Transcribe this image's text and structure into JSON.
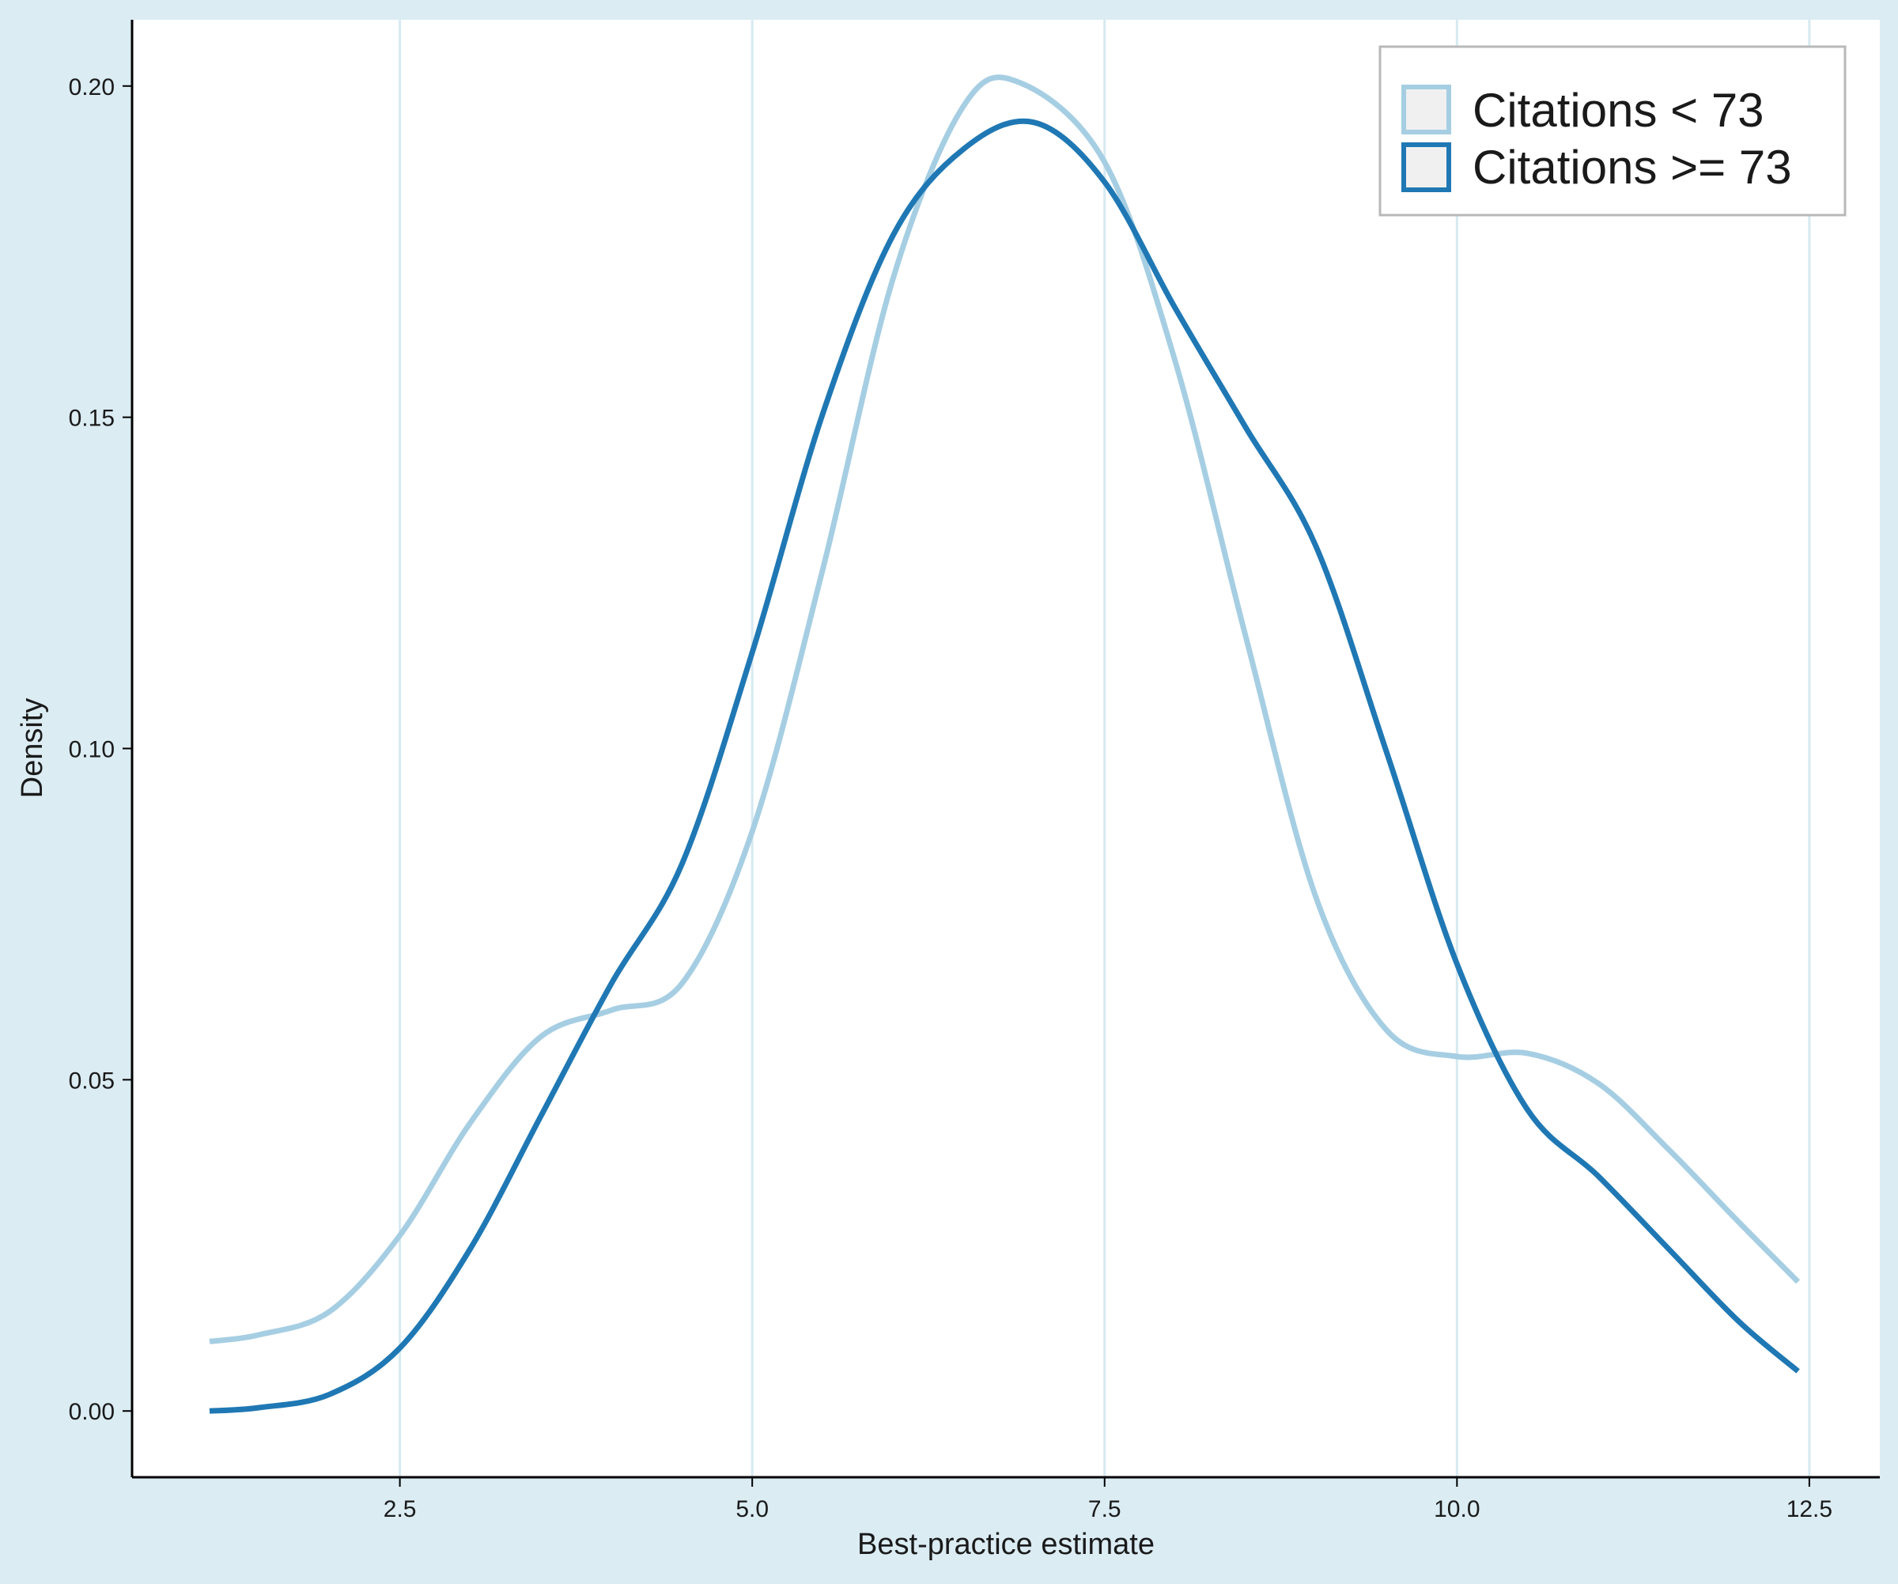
{
  "chart_data": {
    "type": "line",
    "title": "",
    "xlabel": "Best-practice estimate",
    "ylabel": "Density",
    "xlim": [
      0.6,
      13.0
    ],
    "ylim": [
      -0.01,
      0.21
    ],
    "x_ticks": [
      2.5,
      5.0,
      7.5,
      10.0,
      12.5
    ],
    "x_tick_labels": [
      "2.5",
      "5.0",
      "7.5",
      "10.0",
      "12.5"
    ],
    "y_ticks": [
      0.0,
      0.05,
      0.1,
      0.15,
      0.2
    ],
    "y_tick_labels": [
      "0.00",
      "0.05",
      "0.10",
      "0.15",
      "0.20"
    ],
    "grid": "vertical major gridlines only",
    "legend_position": "top-right",
    "colors": {
      "background": "#dbecf3",
      "panel": "#ffffff",
      "grid": "#d6e9f1",
      "series_light": "#a6cee3",
      "series_dark": "#1f78b4",
      "legend_key_fill": "#f0f0f0"
    },
    "series": [
      {
        "name": "Citations < 73",
        "color": "#a6cee3",
        "x": [
          1.15,
          1.5,
          2.0,
          2.5,
          3.0,
          3.5,
          4.0,
          4.5,
          5.0,
          5.5,
          6.0,
          6.5,
          6.9,
          7.5,
          8.0,
          8.5,
          9.0,
          9.5,
          10.0,
          10.5,
          11.0,
          11.5,
          12.0,
          12.42
        ],
        "y": [
          0.0105,
          0.0115,
          0.015,
          0.0265,
          0.0435,
          0.0565,
          0.0605,
          0.0645,
          0.0875,
          0.127,
          0.171,
          0.197,
          0.2005,
          0.1885,
          0.1585,
          0.117,
          0.0775,
          0.0575,
          0.0535,
          0.054,
          0.0495,
          0.0395,
          0.0285,
          0.0195
        ]
      },
      {
        "name": "Citations >= 73",
        "color": "#1f78b4",
        "x": [
          1.15,
          1.5,
          2.0,
          2.5,
          3.0,
          3.5,
          4.0,
          4.5,
          5.0,
          5.5,
          6.0,
          6.5,
          7.0,
          7.5,
          8.0,
          8.5,
          9.0,
          9.5,
          10.0,
          10.5,
          11.0,
          11.5,
          12.0,
          12.42
        ],
        "y": [
          0.0,
          0.0005,
          0.0025,
          0.0095,
          0.0245,
          0.0445,
          0.0645,
          0.0825,
          0.1145,
          0.1505,
          0.1775,
          0.1905,
          0.1945,
          0.1855,
          0.1665,
          0.1485,
          0.1305,
          0.0995,
          0.0675,
          0.0455,
          0.0355,
          0.0245,
          0.0135,
          0.006
        ]
      }
    ]
  }
}
